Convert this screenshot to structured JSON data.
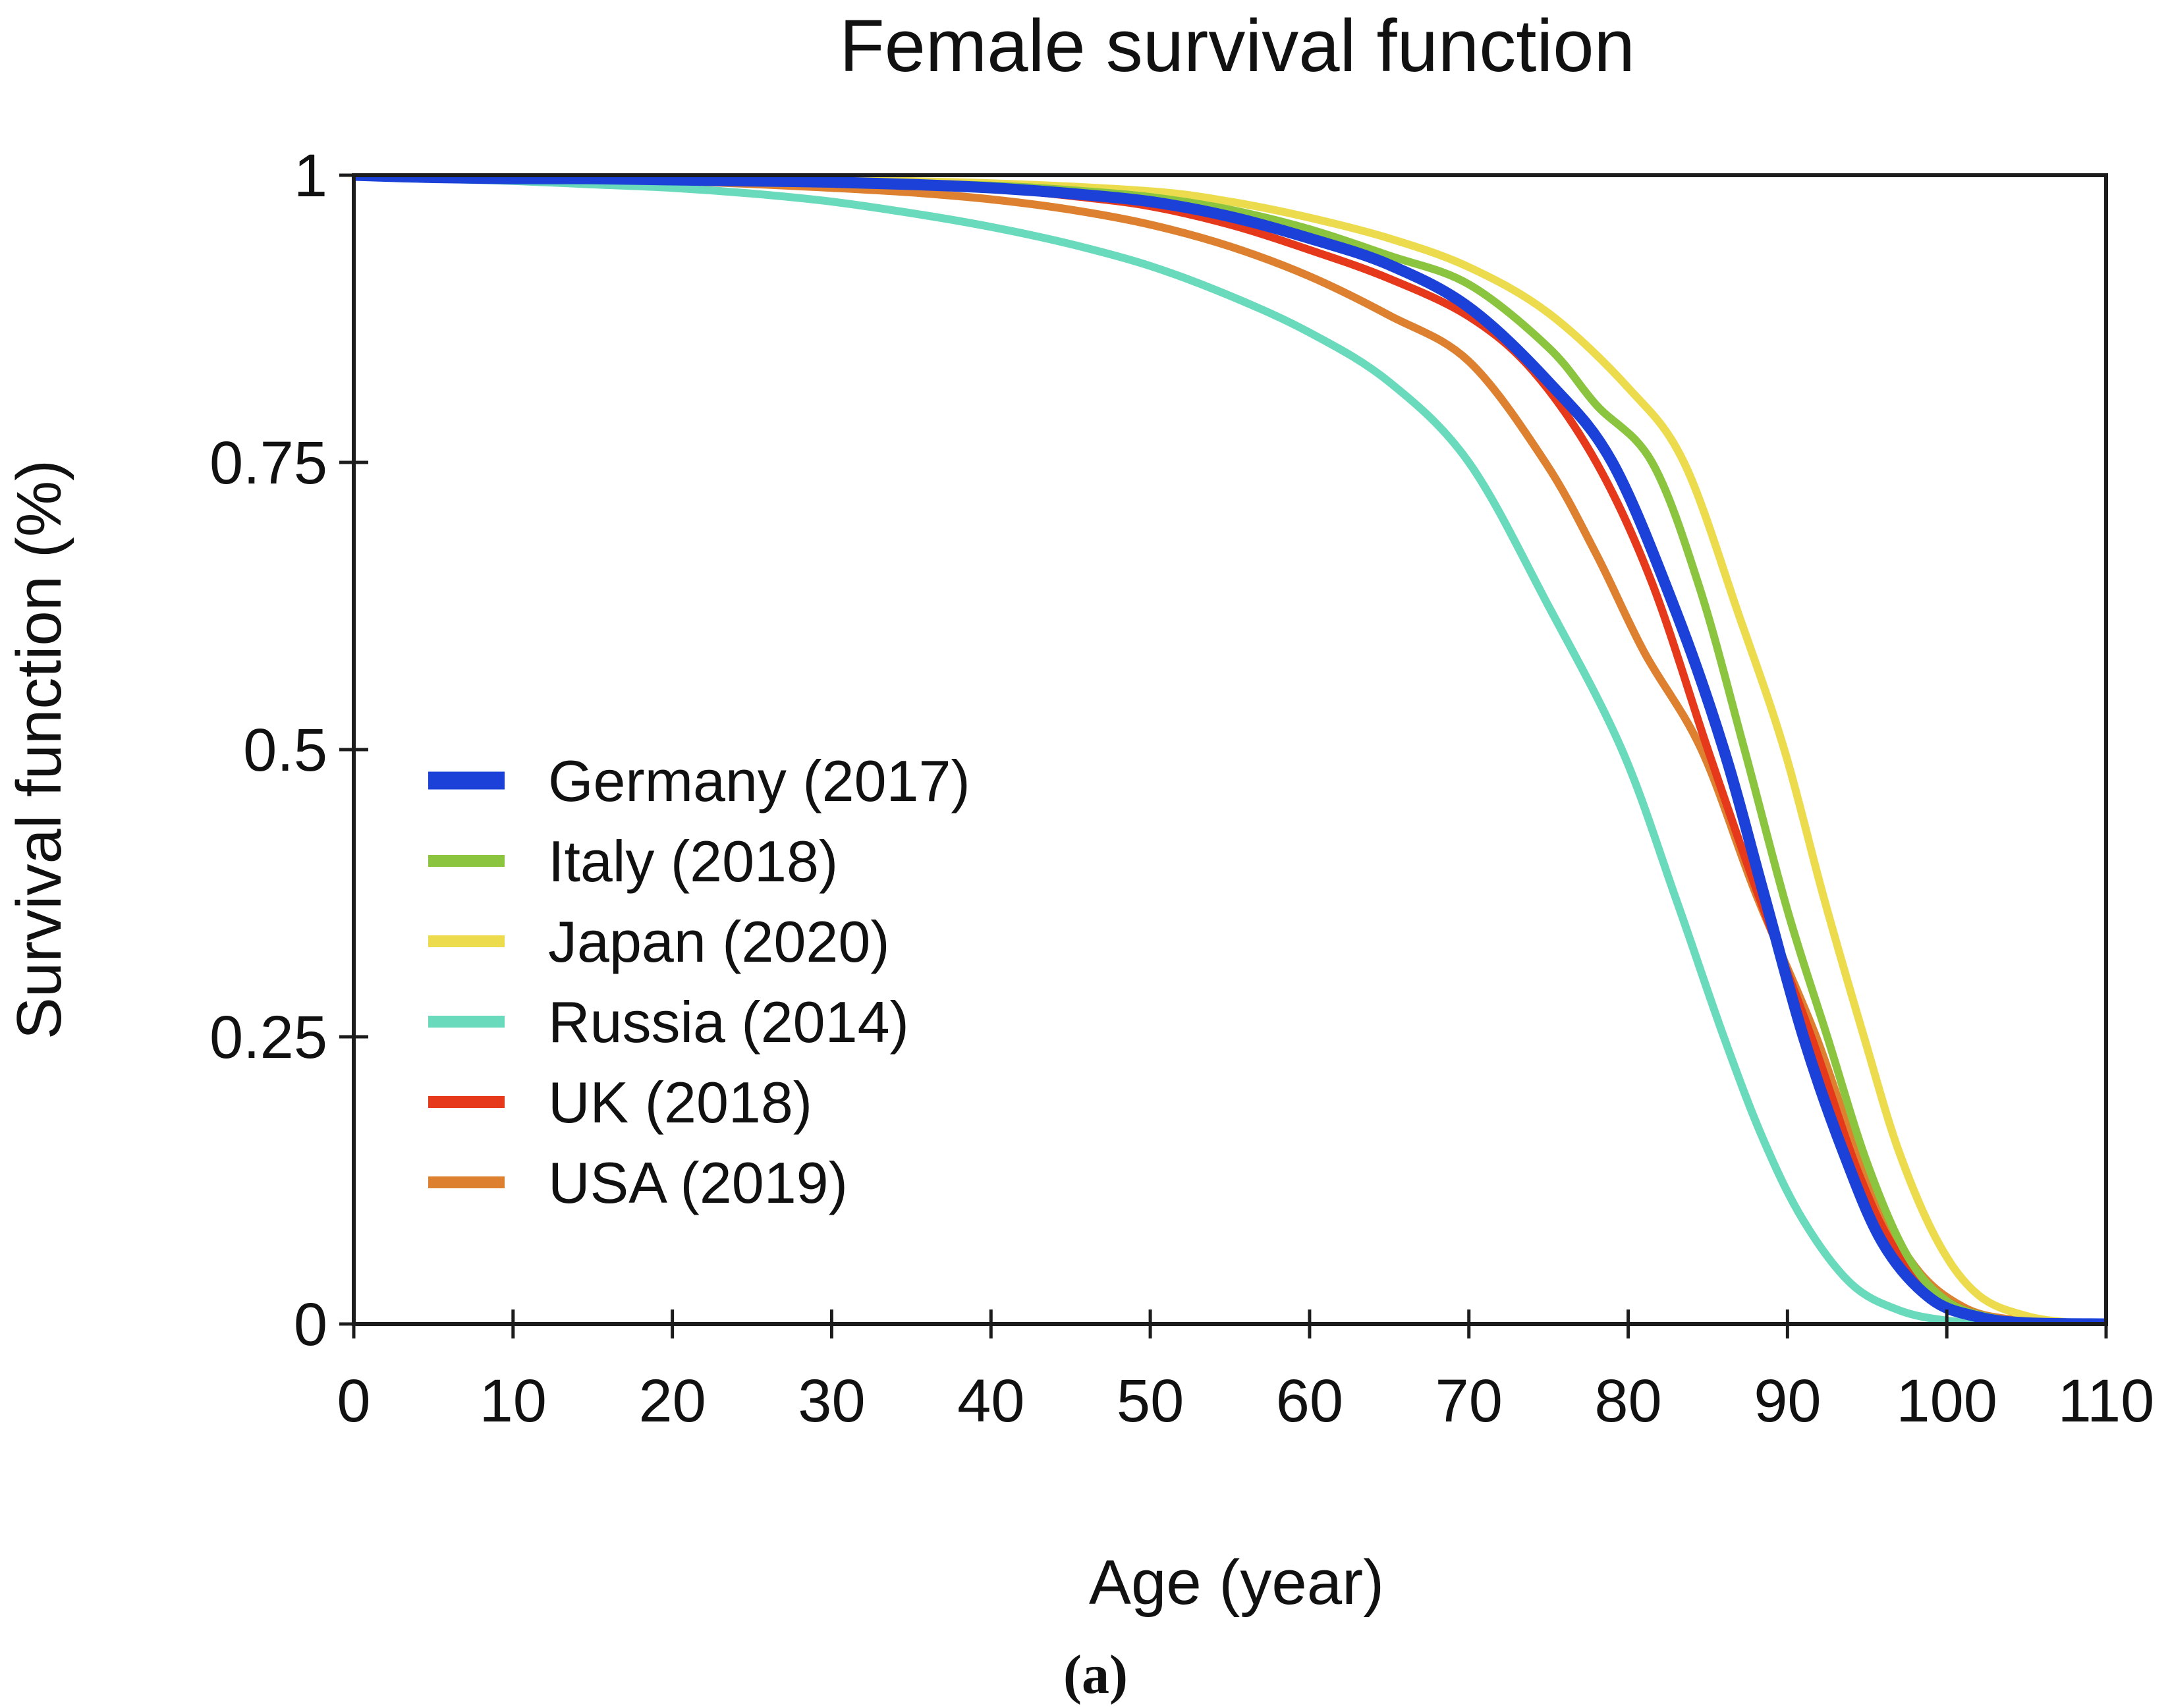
{
  "chart_data": {
    "type": "line",
    "title": "Female survival function",
    "xlabel": "Age (year)",
    "ylabel": "Survival function (%)",
    "caption": "(a)",
    "xlim": [
      0,
      110
    ],
    "ylim": [
      0,
      1
    ],
    "grid": false,
    "legend_position": "inside-left-middle",
    "axis_color": "#1c1c1c",
    "text_color": "#111111",
    "xticks": [
      {
        "v": 0,
        "label": "0"
      },
      {
        "v": 10,
        "label": "10"
      },
      {
        "v": 20,
        "label": "20"
      },
      {
        "v": 30,
        "label": "30"
      },
      {
        "v": 40,
        "label": "40"
      },
      {
        "v": 50,
        "label": "50"
      },
      {
        "v": 60,
        "label": "60"
      },
      {
        "v": 70,
        "label": "70"
      },
      {
        "v": 80,
        "label": "80"
      },
      {
        "v": 90,
        "label": "90"
      },
      {
        "v": 100,
        "label": "100"
      },
      {
        "v": 110,
        "label": "110"
      }
    ],
    "yticks": [
      {
        "v": 0,
        "label": "0"
      },
      {
        "v": 0.25,
        "label": "0.25"
      },
      {
        "v": 0.5,
        "label": "0.5"
      },
      {
        "v": 0.75,
        "label": "0.75"
      },
      {
        "v": 1,
        "label": "1"
      }
    ],
    "series": [
      {
        "name": "Russia (2014)",
        "color": "#69dabc",
        "width": 12,
        "swatch_width": 18,
        "points": [
          [
            0,
            1.0
          ],
          [
            5,
            0.997
          ],
          [
            10,
            0.995
          ],
          [
            15,
            0.992
          ],
          [
            20,
            0.989
          ],
          [
            25,
            0.984
          ],
          [
            30,
            0.977
          ],
          [
            35,
            0.967
          ],
          [
            40,
            0.955
          ],
          [
            45,
            0.94
          ],
          [
            50,
            0.921
          ],
          [
            55,
            0.895
          ],
          [
            60,
            0.863
          ],
          [
            65,
            0.82
          ],
          [
            70,
            0.75
          ],
          [
            75,
            0.625
          ],
          [
            79.6,
            0.5
          ],
          [
            83,
            0.37
          ],
          [
            86,
            0.25
          ],
          [
            88.5,
            0.16
          ],
          [
            91,
            0.09
          ],
          [
            94,
            0.035
          ],
          [
            97,
            0.012
          ],
          [
            100,
            0.003
          ],
          [
            103,
            0.001
          ],
          [
            106,
            0.0
          ],
          [
            110,
            0.0
          ]
        ]
      },
      {
        "name": "USA (2019)",
        "color": "#dd8130",
        "width": 12,
        "swatch_width": 18,
        "points": [
          [
            0,
            1.0
          ],
          [
            10,
            0.997
          ],
          [
            20,
            0.995
          ],
          [
            30,
            0.989
          ],
          [
            35,
            0.985
          ],
          [
            40,
            0.979
          ],
          [
            45,
            0.97
          ],
          [
            50,
            0.957
          ],
          [
            55,
            0.938
          ],
          [
            60,
            0.912
          ],
          [
            65,
            0.878
          ],
          [
            70,
            0.838
          ],
          [
            74.8,
            0.75
          ],
          [
            78,
            0.67
          ],
          [
            81,
            0.585
          ],
          [
            84.6,
            0.5
          ],
          [
            88,
            0.375
          ],
          [
            91.8,
            0.25
          ],
          [
            95,
            0.125
          ],
          [
            98,
            0.05
          ],
          [
            101,
            0.015
          ],
          [
            104,
            0.004
          ],
          [
            108,
            0.001
          ],
          [
            110,
            0.0
          ]
        ]
      },
      {
        "name": "UK (2018)",
        "color": "#e6391c",
        "width": 12,
        "swatch_width": 18,
        "points": [
          [
            0,
            1.0
          ],
          [
            10,
            0.998
          ],
          [
            20,
            0.996
          ],
          [
            30,
            0.994
          ],
          [
            40,
            0.988
          ],
          [
            45,
            0.982
          ],
          [
            50,
            0.973
          ],
          [
            55,
            0.957
          ],
          [
            60,
            0.935
          ],
          [
            65,
            0.91
          ],
          [
            70,
            0.877
          ],
          [
            74,
            0.83
          ],
          [
            78,
            0.75
          ],
          [
            81.5,
            0.645
          ],
          [
            85,
            0.5
          ],
          [
            88,
            0.38
          ],
          [
            91.5,
            0.25
          ],
          [
            94.5,
            0.13
          ],
          [
            97,
            0.06
          ],
          [
            100,
            0.02
          ],
          [
            103,
            0.005
          ],
          [
            106,
            0.001
          ],
          [
            110,
            0.0
          ]
        ]
      },
      {
        "name": "Japan (2020)",
        "color": "#ecdc4d",
        "width": 12,
        "swatch_width": 18,
        "points": [
          [
            0,
            1.0
          ],
          [
            10,
            0.999
          ],
          [
            20,
            0.998
          ],
          [
            30,
            0.996
          ],
          [
            40,
            0.993
          ],
          [
            50,
            0.986
          ],
          [
            55,
            0.977
          ],
          [
            60,
            0.963
          ],
          [
            65,
            0.945
          ],
          [
            70,
            0.92
          ],
          [
            75,
            0.88
          ],
          [
            80,
            0.815
          ],
          [
            83.5,
            0.75
          ],
          [
            87,
            0.615
          ],
          [
            89.8,
            0.5
          ],
          [
            92.3,
            0.37
          ],
          [
            94.8,
            0.25
          ],
          [
            97,
            0.15
          ],
          [
            99.5,
            0.07
          ],
          [
            102,
            0.025
          ],
          [
            105,
            0.007
          ],
          [
            108,
            0.001
          ],
          [
            110,
            0.0
          ]
        ]
      },
      {
        "name": "Italy (2018)",
        "color": "#8bc53f",
        "width": 12,
        "swatch_width": 18,
        "points": [
          [
            0,
            1.0
          ],
          [
            10,
            0.998
          ],
          [
            20,
            0.997
          ],
          [
            30,
            0.995
          ],
          [
            40,
            0.991
          ],
          [
            45,
            0.987
          ],
          [
            50,
            0.981
          ],
          [
            55,
            0.97
          ],
          [
            60,
            0.953
          ],
          [
            65,
            0.93
          ],
          [
            70,
            0.905
          ],
          [
            75,
            0.85
          ],
          [
            78,
            0.8
          ],
          [
            81.5,
            0.75
          ],
          [
            84.5,
            0.64
          ],
          [
            87.3,
            0.5
          ],
          [
            90,
            0.36
          ],
          [
            92.5,
            0.25
          ],
          [
            95,
            0.14
          ],
          [
            97.5,
            0.06
          ],
          [
            100,
            0.02
          ],
          [
            103,
            0.005
          ],
          [
            106,
            0.001
          ],
          [
            110,
            0.0
          ]
        ]
      },
      {
        "name": "Germany (2017)",
        "color": "#1b41d8",
        "width": 17,
        "swatch_width": 27,
        "points": [
          [
            0,
            1.0
          ],
          [
            5,
            0.998
          ],
          [
            10,
            0.997
          ],
          [
            15,
            0.997
          ],
          [
            20,
            0.996
          ],
          [
            25,
            0.995
          ],
          [
            30,
            0.994
          ],
          [
            35,
            0.992
          ],
          [
            40,
            0.989
          ],
          [
            45,
            0.984
          ],
          [
            50,
            0.977
          ],
          [
            55,
            0.964
          ],
          [
            60,
            0.945
          ],
          [
            65,
            0.922
          ],
          [
            70,
            0.885
          ],
          [
            75,
            0.82
          ],
          [
            79,
            0.75
          ],
          [
            83,
            0.62
          ],
          [
            86,
            0.5
          ],
          [
            88.5,
            0.375
          ],
          [
            91,
            0.25
          ],
          [
            93.5,
            0.15
          ],
          [
            96,
            0.07
          ],
          [
            99,
            0.022
          ],
          [
            102,
            0.006
          ],
          [
            105,
            0.001
          ],
          [
            110,
            0.0
          ]
        ]
      }
    ],
    "legend_order": [
      "Germany (2017)",
      "Italy (2018)",
      "Japan (2020)",
      "Russia (2014)",
      "UK (2018)",
      "USA (2019)"
    ]
  }
}
